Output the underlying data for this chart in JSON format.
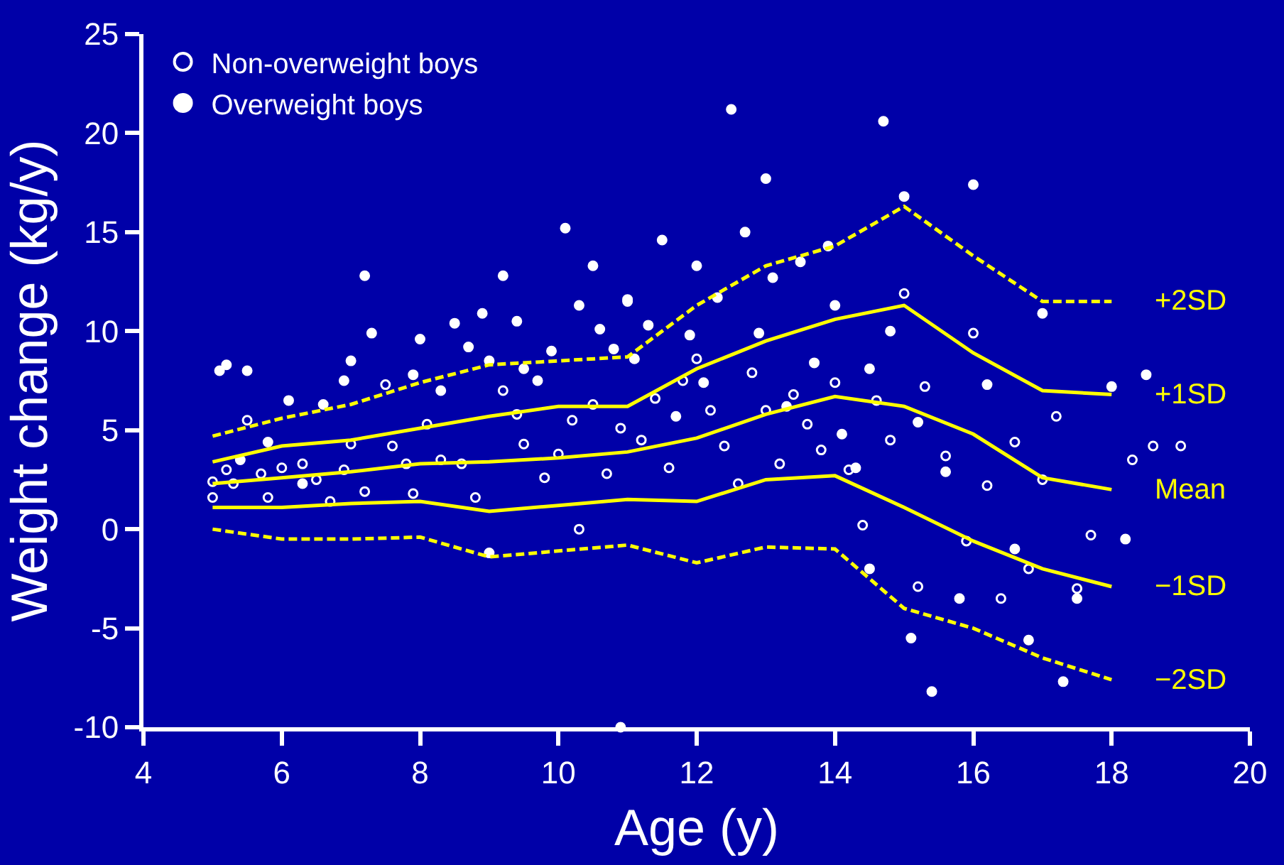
{
  "chart_data": {
    "type": "scatter",
    "xlabel": "Age (y)",
    "ylabel": "Weight change (kg/y)",
    "xlim": [
      4,
      20
    ],
    "xticks": [
      4,
      6,
      8,
      10,
      12,
      14,
      16,
      18,
      20
    ],
    "ylim": [
      -10,
      25
    ],
    "yticks": [
      -10,
      -5,
      0,
      5,
      10,
      15,
      20,
      25
    ],
    "grid": false,
    "legend": "top left",
    "series": [
      {
        "name": "Non-overweight boys",
        "marker": "circle-open",
        "color": "#ffffff",
        "x": [
          5.0,
          5.0,
          5.2,
          5.3,
          5.5,
          5.7,
          5.8,
          6.0,
          6.3,
          6.5,
          6.7,
          6.9,
          7.0,
          7.2,
          7.5,
          7.6,
          7.8,
          7.9,
          8.1,
          8.3,
          8.6,
          8.8,
          9.2,
          9.4,
          9.5,
          9.8,
          10.0,
          10.2,
          10.3,
          10.5,
          10.7,
          10.9,
          11.0,
          11.2,
          11.4,
          11.6,
          11.8,
          12.0,
          12.2,
          12.4,
          12.6,
          12.8,
          13.0,
          13.2,
          13.4,
          13.6,
          13.8,
          14.0,
          14.2,
          14.4,
          14.6,
          14.8,
          15.0,
          15.2,
          15.3,
          15.6,
          15.9,
          16.0,
          16.2,
          16.4,
          16.6,
          16.8,
          17.0,
          17.2,
          17.5,
          17.7,
          18.3,
          18.6,
          19.0
        ],
        "values": [
          2.4,
          1.6,
          3.0,
          2.3,
          5.5,
          2.8,
          1.6,
          3.1,
          3.3,
          2.5,
          1.4,
          3.0,
          4.3,
          1.9,
          7.3,
          4.2,
          3.3,
          1.8,
          5.3,
          3.5,
          3.3,
          1.6,
          7.0,
          5.8,
          4.3,
          2.6,
          3.8,
          5.5,
          0.0,
          6.3,
          2.8,
          5.1,
          11.5,
          4.5,
          6.6,
          3.1,
          7.5,
          8.6,
          6.0,
          4.2,
          2.3,
          7.9,
          6.0,
          3.3,
          6.8,
          5.3,
          4.0,
          7.4,
          3.0,
          0.2,
          6.5,
          4.5,
          11.9,
          -2.9,
          7.2,
          3.7,
          -0.6,
          9.9,
          2.2,
          -3.5,
          4.4,
          -2.0,
          2.5,
          5.7,
          -3.0,
          -0.3,
          3.5,
          4.2,
          4.2
        ]
      },
      {
        "name": "Overweight boys",
        "marker": "circle",
        "color": "#ffffff",
        "x": [
          5.1,
          5.2,
          5.4,
          5.5,
          5.8,
          6.1,
          6.3,
          6.6,
          6.9,
          7.0,
          7.2,
          7.3,
          7.9,
          8.0,
          8.3,
          8.5,
          8.7,
          8.9,
          9.0,
          9.2,
          9.4,
          9.5,
          9.7,
          9.9,
          10.1,
          10.3,
          10.5,
          10.6,
          10.8,
          11.0,
          11.1,
          11.3,
          11.5,
          11.7,
          11.9,
          12.0,
          12.1,
          12.3,
          12.5,
          12.7,
          12.9,
          13.0,
          13.1,
          13.3,
          13.5,
          13.7,
          13.9,
          14.0,
          14.1,
          14.3,
          14.5,
          14.7,
          14.8,
          15.0,
          15.2,
          15.4,
          15.1,
          15.6,
          15.8,
          16.0,
          16.2,
          16.6,
          16.8,
          17.0,
          17.3,
          17.5,
          18.0,
          18.2,
          18.5,
          10.9,
          9.0,
          14.5
        ],
        "values": [
          8.0,
          8.3,
          3.5,
          8.0,
          4.4,
          6.5,
          2.3,
          6.3,
          7.5,
          8.5,
          12.8,
          9.9,
          7.8,
          9.6,
          7.0,
          10.4,
          9.2,
          10.9,
          8.5,
          12.8,
          10.5,
          8.1,
          7.5,
          9.0,
          15.2,
          11.3,
          13.3,
          10.1,
          9.1,
          11.6,
          8.6,
          10.3,
          14.6,
          5.7,
          9.8,
          13.3,
          7.4,
          11.7,
          21.2,
          15.0,
          9.9,
          17.7,
          12.7,
          6.2,
          13.5,
          8.4,
          14.3,
          11.3,
          4.8,
          3.1,
          8.1,
          20.6,
          10.0,
          16.8,
          5.4,
          -8.2,
          -5.5,
          2.9,
          -3.5,
          17.4,
          7.3,
          -1.0,
          -5.6,
          10.9,
          -7.7,
          -3.5,
          7.2,
          -0.5,
          7.8,
          -10.0,
          -1.2,
          -2.0
        ]
      },
      {
        "name": "+2SD",
        "type": "line",
        "line_style": "dashed",
        "marker": "none",
        "color": "#ffff00",
        "x": [
          5,
          6,
          7,
          8,
          9,
          10,
          11,
          12,
          13,
          14,
          15,
          16,
          17,
          18
        ],
        "values": [
          4.7,
          5.6,
          6.3,
          7.4,
          8.3,
          8.5,
          8.7,
          11.3,
          13.3,
          14.3,
          16.3,
          13.8,
          11.5,
          11.5
        ]
      },
      {
        "name": "+1SD",
        "type": "line",
        "line_style": "solid",
        "marker": "none",
        "color": "#ffff00",
        "x": [
          5,
          6,
          7,
          8,
          9,
          10,
          11,
          12,
          13,
          14,
          15,
          16,
          17,
          18
        ],
        "values": [
          3.4,
          4.2,
          4.5,
          5.1,
          5.7,
          6.2,
          6.2,
          8.1,
          9.5,
          10.6,
          11.3,
          8.9,
          7.0,
          6.8
        ]
      },
      {
        "name": "Mean",
        "type": "line",
        "line_style": "solid",
        "marker": "none",
        "color": "#ffff00",
        "x": [
          5,
          6,
          7,
          8,
          9,
          10,
          11,
          12,
          13,
          14,
          15,
          16,
          17,
          18
        ],
        "values": [
          2.3,
          2.6,
          2.9,
          3.3,
          3.4,
          3.6,
          3.9,
          4.6,
          5.8,
          6.7,
          6.2,
          4.8,
          2.6,
          2.0
        ]
      },
      {
        "name": "−1SD",
        "type": "line",
        "line_style": "solid",
        "marker": "none",
        "color": "#ffff00",
        "x": [
          5,
          6,
          7,
          8,
          9,
          10,
          11,
          12,
          13,
          14,
          15,
          16,
          17,
          18
        ],
        "values": [
          1.1,
          1.1,
          1.3,
          1.4,
          0.9,
          1.2,
          1.5,
          1.4,
          2.5,
          2.7,
          1.1,
          -0.6,
          -2.0,
          -2.9
        ]
      },
      {
        "name": "−2SD",
        "type": "line",
        "line_style": "dashed",
        "marker": "none",
        "color": "#ffff00",
        "x": [
          5,
          6,
          7,
          8,
          9,
          10,
          11,
          12,
          13,
          14,
          15,
          16,
          17,
          18
        ],
        "values": [
          0.0,
          -0.5,
          -0.5,
          -0.4,
          -1.4,
          -1.1,
          -0.8,
          -1.7,
          -0.9,
          -1.0,
          -4.0,
          -5.0,
          -6.5,
          -7.6
        ]
      }
    ]
  }
}
